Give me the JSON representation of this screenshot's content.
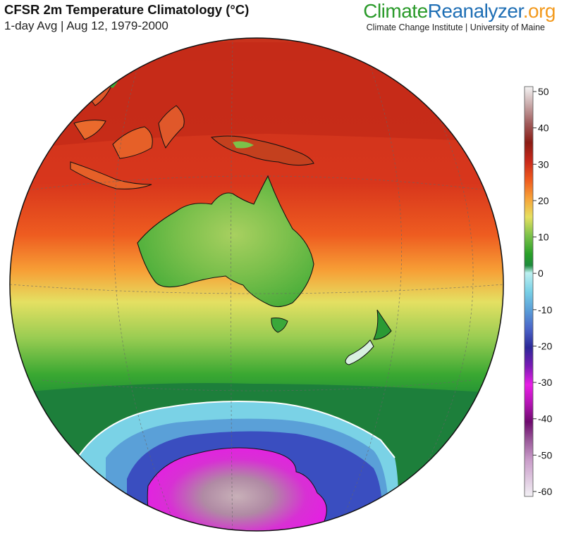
{
  "header": {
    "title": "CFSR 2m Temperature Climatology (°C)",
    "subtitle": "1-day Avg | Aug 12, 1979-2000"
  },
  "brand": {
    "part1": "Climate",
    "part2": "Reanalyzer",
    "part3": ".org",
    "subtitle": "Climate Change Institute | University of Maine",
    "colors": {
      "climate": "#2a9a2a",
      "reanalyzer": "#1f6fb5",
      "org": "#f39a1e"
    }
  },
  "colorbar": {
    "ticks": [
      "50",
      "40",
      "30",
      "20",
      "10",
      "0",
      "-10",
      "-20",
      "-30",
      "-40",
      "-50",
      "-60"
    ],
    "min": -60,
    "max": 50,
    "stops": [
      {
        "value": 50,
        "color": "#f4f4f4"
      },
      {
        "value": 45,
        "color": "#c8a8a8"
      },
      {
        "value": 40,
        "color": "#a05a5a"
      },
      {
        "value": 35,
        "color": "#8a1c14"
      },
      {
        "value": 30,
        "color": "#c8281a"
      },
      {
        "value": 25,
        "color": "#ef5a1e"
      },
      {
        "value": 20,
        "color": "#f7a238"
      },
      {
        "value": 15,
        "color": "#e6e060"
      },
      {
        "value": 10,
        "color": "#7cc24a"
      },
      {
        "value": 5,
        "color": "#28a028"
      },
      {
        "value": 2,
        "color": "#1e8a3c"
      },
      {
        "value": 0,
        "color": "#bdf0f0"
      },
      {
        "value": -5,
        "color": "#78d0e6"
      },
      {
        "value": -10,
        "color": "#5a9ed8"
      },
      {
        "value": -15,
        "color": "#4a64c8"
      },
      {
        "value": -20,
        "color": "#2c2898"
      },
      {
        "value": -25,
        "color": "#7a1ab4"
      },
      {
        "value": -30,
        "color": "#e81ee6"
      },
      {
        "value": -35,
        "color": "#b414b4"
      },
      {
        "value": -40,
        "color": "#6e0a6e"
      },
      {
        "value": -45,
        "color": "#9a5a9a"
      },
      {
        "value": -50,
        "color": "#c89ac8"
      },
      {
        "value": -60,
        "color": "#f2f0f4"
      }
    ]
  },
  "map": {
    "projection": "orthographic",
    "center": "Australia / Southern Ocean",
    "regions": [
      "Australia",
      "New Guinea",
      "Tasmania",
      "New Zealand",
      "Antarctica",
      "Indonesia",
      "Philippines"
    ],
    "colors": {
      "coastline": "#111111",
      "gridline": "#666666",
      "sea_ice_edge": "#ffffff"
    }
  }
}
